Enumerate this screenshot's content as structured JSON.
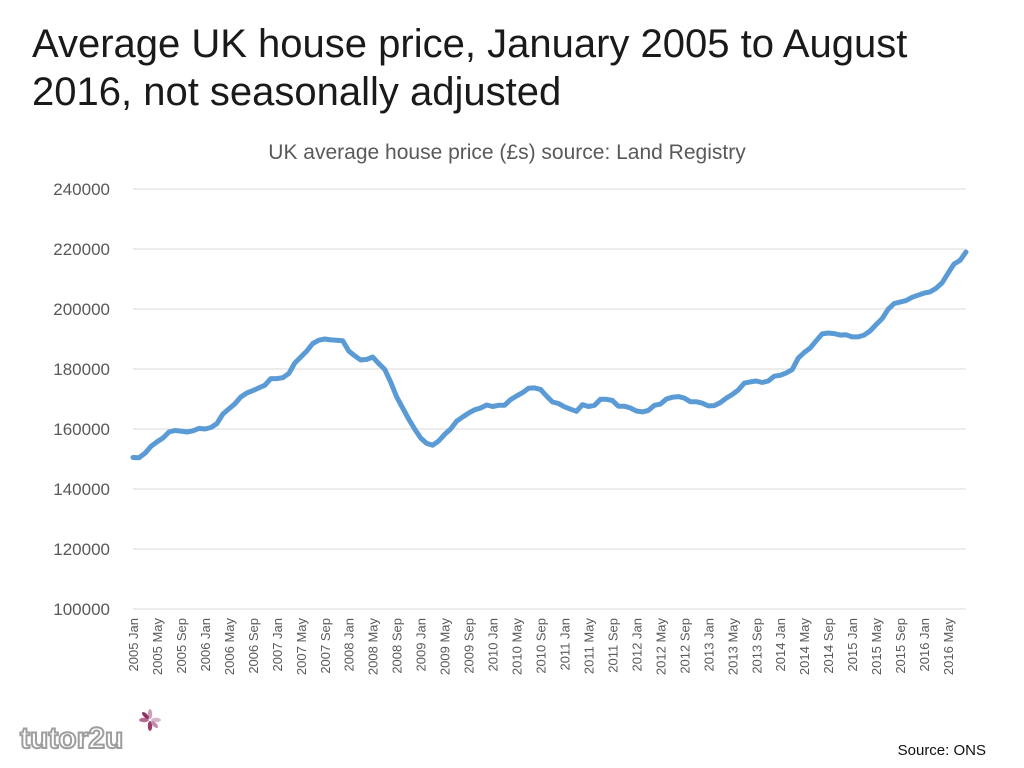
{
  "slide": {
    "title": "Average UK house price, January 2005 to August 2016, not seasonally adjusted",
    "source": "Source: ONS",
    "logo_text": "tutor2u"
  },
  "colors": {
    "line": "#5b9bd5",
    "grid": "#d9d9d9",
    "text": "#595959"
  },
  "chart_data": {
    "type": "line",
    "title": "UK average house price (£s) source: Land Registry",
    "xlabel": "",
    "ylabel": "",
    "ylim": [
      100000,
      240000
    ],
    "yticks": [
      100000,
      120000,
      140000,
      160000,
      180000,
      200000,
      220000,
      240000
    ],
    "xtick_labels": [
      "2005 Jan",
      "2005 May",
      "2005 Sep",
      "2006 Jan",
      "2006 May",
      "2006 Sep",
      "2007 Jan",
      "2007 May",
      "2007 Sep",
      "2008 Jan",
      "2008 May",
      "2008 Sep",
      "2009 Jan",
      "2009 May",
      "2009 Sep",
      "2010 Jan",
      "2010 May",
      "2010 Sep",
      "2011 Jan",
      "2011 May",
      "2011 Sep",
      "2012 Jan",
      "2012 May",
      "2012 Sep",
      "2013 Jan",
      "2013 May",
      "2013 Sep",
      "2014 Jan",
      "2014 May",
      "2014 Sep",
      "2015 Jan",
      "2015 May",
      "2015 Sep",
      "2016 Jan",
      "2016 May"
    ],
    "grid": true,
    "legend": "none",
    "series": [
      {
        "values": [
          150500,
          150400,
          151900,
          154200,
          155700,
          157000,
          159000,
          159500,
          159300,
          159000,
          159400,
          160200,
          160000,
          160500,
          161800,
          165000,
          166700,
          168400,
          170700,
          172000,
          172800,
          173700,
          174600,
          176800,
          176800,
          177100,
          178500,
          182000,
          184000,
          186000,
          188500,
          189600,
          190000,
          189700,
          189600,
          189400,
          186000,
          184400,
          183000,
          183200,
          184000,
          181800,
          179900,
          175600,
          170700,
          167000,
          163300,
          160000,
          157000,
          155200,
          154600,
          156000,
          158200,
          160000,
          162600,
          164000,
          165300,
          166400,
          167000,
          168000,
          167500,
          167900,
          167900,
          169800,
          171000,
          172100,
          173600,
          173700,
          173200,
          171000,
          169000,
          168500,
          167400,
          166600,
          165900,
          168100,
          167500,
          167900,
          169900,
          169900,
          169500,
          167600,
          167600,
          167000,
          166000,
          165700,
          166200,
          167900,
          168300,
          170000,
          170600,
          170800,
          170300,
          169100,
          169100,
          168600,
          167700,
          167800,
          168800,
          170300,
          171500,
          173000,
          175300,
          175700,
          176000,
          175500,
          176000,
          177600,
          177900,
          178700,
          179800,
          183600,
          185500,
          187000,
          189400,
          191700,
          192000,
          191800,
          191300,
          191400,
          190700,
          190700,
          191300,
          192700,
          194800,
          196800,
          199900,
          201800,
          202300,
          202800,
          203900,
          204600,
          205300,
          205700,
          206900,
          208700,
          211900,
          215000,
          216200,
          219000
        ]
      }
    ]
  }
}
